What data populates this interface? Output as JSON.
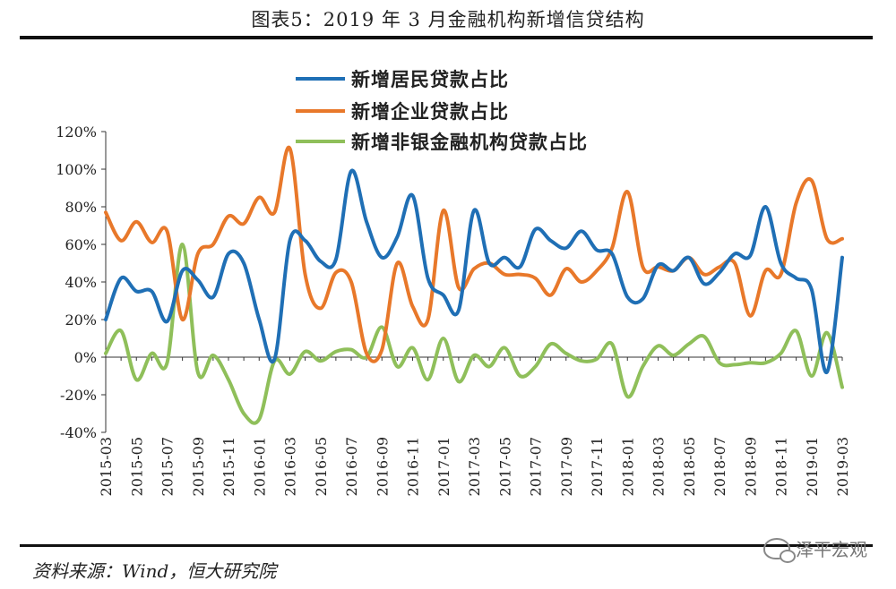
{
  "title": "图表5：2019 年 3 月金融机构新增信贷结构",
  "source": "资料来源：Wind，恒大研究院",
  "watermark": "泽平宏观",
  "chart_data": {
    "type": "line",
    "ylim": [
      -40,
      120
    ],
    "yticks": [
      -40,
      -20,
      0,
      20,
      40,
      60,
      80,
      100,
      120
    ],
    "ytick_labels": [
      "-40%",
      "-20%",
      "0%",
      "20%",
      "40%",
      "60%",
      "80%",
      "100%",
      "120%"
    ],
    "legend_position": "top-center",
    "grid": false,
    "x": [
      "2015-03",
      "2015-04",
      "2015-05",
      "2015-06",
      "2015-07",
      "2015-08",
      "2015-09",
      "2015-10",
      "2015-11",
      "2015-12",
      "2016-01",
      "2016-02",
      "2016-03",
      "2016-04",
      "2016-05",
      "2016-06",
      "2016-07",
      "2016-08",
      "2016-09",
      "2016-10",
      "2016-11",
      "2016-12",
      "2017-01",
      "2017-02",
      "2017-03",
      "2017-04",
      "2017-05",
      "2017-06",
      "2017-07",
      "2017-08",
      "2017-09",
      "2017-10",
      "2017-11",
      "2017-12",
      "2018-01",
      "2018-02",
      "2018-03",
      "2018-04",
      "2018-05",
      "2018-06",
      "2018-07",
      "2018-08",
      "2018-09",
      "2018-10",
      "2018-11",
      "2018-12",
      "2019-01",
      "2019-02",
      "2019-03"
    ],
    "xtick_labels": [
      "2015-03",
      "2015-05",
      "2015-07",
      "2015-09",
      "2015-11",
      "2016-01",
      "2016-03",
      "2016-05",
      "2016-07",
      "2016-09",
      "2016-11",
      "2017-01",
      "2017-03",
      "2017-05",
      "2017-07",
      "2017-09",
      "2017-11",
      "2018-01",
      "2018-03",
      "2018-05",
      "2018-07",
      "2018-09",
      "2018-11",
      "2019-01",
      "2019-03"
    ],
    "series": [
      {
        "name": "新增居民贷款占比",
        "color": "#1f6fb5",
        "values": [
          20,
          42,
          35,
          35,
          19,
          46,
          41,
          32,
          55,
          50,
          20,
          -1,
          62,
          62,
          51,
          52,
          99,
          72,
          53,
          64,
          86,
          42,
          33,
          25,
          78,
          50,
          53,
          48,
          68,
          62,
          58,
          67,
          57,
          55,
          32,
          31,
          49,
          46,
          53,
          39,
          45,
          55,
          54,
          80,
          50,
          42,
          36,
          -8,
          53
        ]
      },
      {
        "name": "新增企业贷款占比",
        "color": "#e8782a",
        "values": [
          77,
          62,
          72,
          61,
          67,
          20,
          55,
          60,
          75,
          71,
          85,
          77,
          111,
          44,
          26,
          45,
          40,
          2,
          4,
          50,
          27,
          20,
          78,
          37,
          47,
          50,
          44,
          44,
          42,
          33,
          47,
          40,
          46,
          58,
          88,
          48,
          48,
          46,
          53,
          44,
          48,
          50,
          22,
          46,
          44,
          82,
          94,
          63,
          63
        ]
      },
      {
        "name": "新增非银金融机构贷款占比",
        "color": "#8fbf5a",
        "values": [
          2,
          14,
          -12,
          2,
          -3,
          60,
          -8,
          1,
          -12,
          -30,
          -33,
          -2,
          -9,
          3,
          -2,
          3,
          4,
          0,
          16,
          -5,
          5,
          -12,
          10,
          -13,
          1,
          -5,
          5,
          -10,
          -5,
          7,
          2,
          -2,
          -1,
          7,
          -21,
          -5,
          6,
          1,
          7,
          11,
          -3,
          -4,
          -3,
          -3,
          2,
          14,
          -10,
          13,
          -16
        ]
      }
    ]
  }
}
